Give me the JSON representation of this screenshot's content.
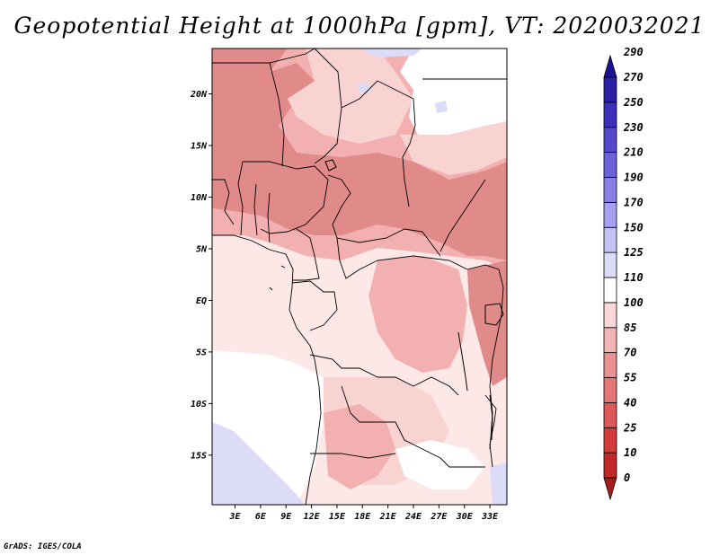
{
  "title": "Geopotential Height at 1000hPa [gpm], VT: 2020032021",
  "credit": "GrADS: IGES/COLA",
  "map": {
    "lat_ticks": [
      {
        "label": "20N",
        "lat": 20
      },
      {
        "label": "15N",
        "lat": 15
      },
      {
        "label": "10N",
        "lat": 10
      },
      {
        "label": "5N",
        "lat": 5
      },
      {
        "label": "EQ",
        "lat": 0
      },
      {
        "label": "5S",
        "lat": -5
      },
      {
        "label": "10S",
        "lat": -10
      },
      {
        "label": "15S",
        "lat": -15
      }
    ],
    "lon_ticks": [
      {
        "label": "3E",
        "lon": 3
      },
      {
        "label": "6E",
        "lon": 6
      },
      {
        "label": "9E",
        "lon": 9
      },
      {
        "label": "12E",
        "lon": 12
      },
      {
        "label": "15E",
        "lon": 15
      },
      {
        "label": "18E",
        "lon": 18
      },
      {
        "label": "21E",
        "lon": 21
      },
      {
        "label": "24E",
        "lon": 24
      },
      {
        "label": "27E",
        "lon": 27
      },
      {
        "label": "30E",
        "lon": 30
      },
      {
        "label": "33E",
        "lon": 33
      }
    ],
    "lon_range": [
      0.3,
      35
    ],
    "lat_range": [
      -19.8,
      24.4
    ]
  },
  "colorbar": {
    "levels": [
      "0",
      "10",
      "25",
      "40",
      "55",
      "70",
      "85",
      "100",
      "110",
      "125",
      "150",
      "170",
      "190",
      "210",
      "230",
      "250",
      "270",
      "290"
    ],
    "colors": [
      "#a51e1e",
      "#c12828",
      "#d33a3a",
      "#dd5858",
      "#e47676",
      "#ea9292",
      "#f2b4b4",
      "#fad6d6",
      "#ffffff",
      "#dcdcf8",
      "#c2c2f4",
      "#a6a0f0",
      "#8880e6",
      "#6c62da",
      "#5448cc",
      "#3c30ba",
      "#2a1ea4",
      "#1c1094"
    ]
  },
  "colors": {
    "dark": "#e08a8a",
    "mid": "#f2b0b0",
    "light": "#f9d2d2",
    "pale": "#fde8e8",
    "white": "#ffffff",
    "blue": "#dcdcf8"
  }
}
